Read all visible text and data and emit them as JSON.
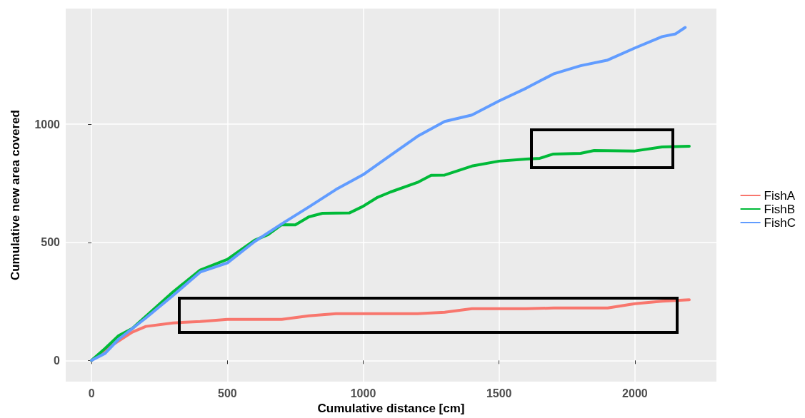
{
  "chart_data": {
    "type": "line",
    "xlabel": "Cumulative distance [cm]",
    "ylabel": "Cumulative new area covered",
    "xlim": [
      -95,
      2300
    ],
    "ylim": [
      -90,
      1490
    ],
    "xticks": [
      0,
      500,
      1000,
      1500,
      2000
    ],
    "yticks": [
      0,
      500,
      1000
    ],
    "grid": true,
    "legend": "right",
    "marker": "none",
    "line_style": "solid",
    "series": [
      {
        "name": "FishA",
        "color": "#f8766d",
        "x": [
          0,
          50,
          150,
          200,
          300,
          400,
          500,
          700,
          800,
          900,
          1000,
          1200,
          1300,
          1400,
          1600,
          1700,
          1900,
          2000,
          2100,
          2200
        ],
        "values": [
          0,
          45,
          120,
          144,
          159,
          165,
          174,
          174,
          189,
          198,
          198,
          198,
          204,
          219,
          219,
          222,
          222,
          240,
          251,
          257
        ]
      },
      {
        "name": "FishB",
        "color": "#00ba38",
        "x": [
          0,
          50,
          100,
          150,
          300,
          400,
          500,
          600,
          650,
          700,
          750,
          800,
          850,
          950,
          1000,
          1050,
          1100,
          1200,
          1250,
          1300,
          1400,
          1500,
          1600,
          1650,
          1700,
          1800,
          1850,
          2000,
          2100,
          2200
        ],
        "values": [
          0,
          51,
          105,
          135,
          290,
          383,
          428,
          509,
          533,
          575,
          574,
          608,
          623,
          625,
          653,
          689,
          713,
          754,
          784,
          785,
          823,
          844,
          853,
          856,
          874,
          877,
          889,
          887,
          904,
          907
        ]
      },
      {
        "name": "FishC",
        "color": "#619cff",
        "x": [
          0,
          50,
          100,
          200,
          300,
          400,
          500,
          600,
          700,
          800,
          900,
          1000,
          1100,
          1200,
          1300,
          1400,
          1500,
          1600,
          1700,
          1800,
          1900,
          2000,
          2100,
          2150,
          2185
        ],
        "values": [
          0,
          30,
          90,
          180,
          275,
          374,
          413,
          503,
          578,
          650,
          724,
          787,
          868,
          949,
          1012,
          1039,
          1099,
          1153,
          1213,
          1248,
          1272,
          1323,
          1371,
          1383,
          1410
        ]
      }
    ]
  }
}
